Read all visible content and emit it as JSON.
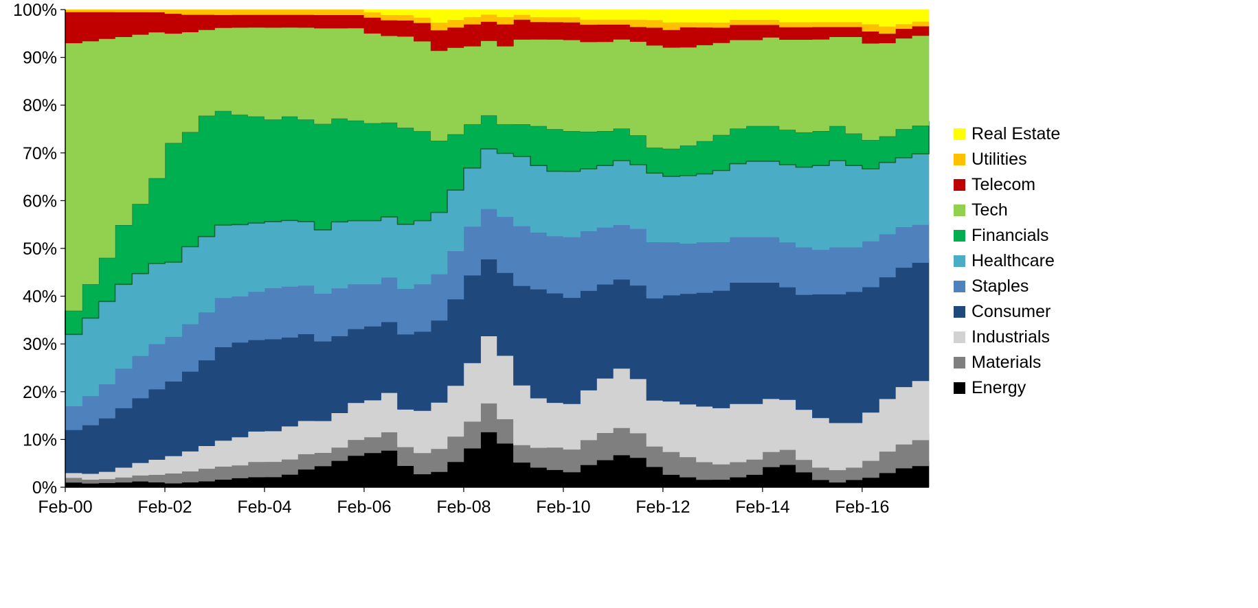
{
  "chart_data": {
    "type": "area",
    "stacking": "percent_100",
    "title": "",
    "xlabel": "",
    "ylabel": "",
    "ylim": [
      0,
      100
    ],
    "grid": false,
    "legend_position": "right",
    "y_tick_labels": [
      "0%",
      "10%",
      "20%",
      "30%",
      "40%",
      "50%",
      "60%",
      "70%",
      "80%",
      "90%",
      "100%"
    ],
    "y_tick_values": [
      0,
      10,
      20,
      30,
      40,
      50,
      60,
      70,
      80,
      90,
      100
    ],
    "x_tick_labels": [
      "Feb-00",
      "Feb-02",
      "Feb-04",
      "Feb-06",
      "Feb-08",
      "Feb-10",
      "Feb-12",
      "Feb-14",
      "Feb-16"
    ],
    "x_tick_years": [
      2000.08,
      2002.08,
      2004.08,
      2006.08,
      2008.08,
      2010.08,
      2012.08,
      2014.08,
      2016.08
    ],
    "x_years": [
      2000.08,
      2000.42,
      2000.75,
      2001.08,
      2001.42,
      2001.75,
      2002.08,
      2002.42,
      2002.75,
      2003.08,
      2003.42,
      2003.75,
      2004.08,
      2004.42,
      2004.75,
      2005.08,
      2005.42,
      2005.75,
      2006.08,
      2006.42,
      2006.75,
      2007.08,
      2007.42,
      2007.75,
      2008.08,
      2008.42,
      2008.75,
      2009.08,
      2009.42,
      2009.75,
      2010.08,
      2010.42,
      2010.75,
      2011.08,
      2011.42,
      2011.75,
      2012.08,
      2012.42,
      2012.75,
      2013.08,
      2013.42,
      2013.75,
      2014.08,
      2014.42,
      2014.75,
      2015.08,
      2015.42,
      2015.75,
      2016.08,
      2016.42,
      2016.75,
      2017.08,
      2017.42
    ],
    "series_bottom_to_top": [
      {
        "name": "Energy",
        "color": "#000000",
        "values": [
          1.0,
          0.8,
          0.9,
          1.0,
          1.2,
          1.0,
          0.8,
          1.0,
          1.2,
          1.5,
          1.8,
          2.0,
          2.0,
          2.5,
          3.5,
          4.0,
          5.0,
          6.0,
          6.5,
          7.0,
          4.0,
          2.5,
          3.0,
          5.0,
          8.0,
          11.5,
          9.0,
          5.0,
          4.0,
          3.5,
          3.0,
          4.5,
          5.5,
          6.5,
          6.0,
          4.0,
          2.5,
          2.0,
          1.5,
          1.5,
          2.0,
          2.5,
          4.0,
          4.5,
          3.0,
          1.5,
          1.0,
          1.5,
          2.0,
          3.0,
          4.0,
          4.5,
          5.5
        ]
      },
      {
        "name": "Materials",
        "color": "#7F7F7F",
        "values": [
          1.0,
          0.8,
          0.8,
          1.0,
          1.2,
          1.5,
          2.0,
          2.2,
          2.5,
          2.5,
          2.5,
          3.0,
          3.0,
          3.0,
          3.0,
          2.5,
          2.5,
          3.0,
          3.0,
          3.5,
          3.5,
          4.0,
          4.5,
          5.0,
          5.5,
          6.0,
          5.0,
          3.5,
          4.0,
          4.5,
          4.5,
          5.0,
          5.5,
          5.5,
          5.0,
          4.0,
          4.5,
          4.0,
          3.5,
          3.0,
          3.0,
          3.0,
          3.0,
          3.0,
          2.5,
          2.5,
          2.5,
          2.5,
          3.5,
          4.5,
          5.0,
          5.5,
          6.0
        ]
      },
      {
        "name": "Industrials",
        "color": "#D2D2D2",
        "values": [
          1.0,
          1.2,
          1.5,
          2.0,
          2.5,
          3.0,
          3.5,
          4.0,
          4.5,
          5.0,
          5.5,
          6.0,
          6.0,
          6.5,
          6.5,
          6.0,
          6.5,
          7.0,
          7.0,
          7.5,
          7.0,
          8.0,
          9.0,
          10.0,
          12.0,
          14.0,
          13.0,
          12.0,
          10.0,
          9.0,
          9.0,
          10.0,
          11.0,
          12.0,
          11.0,
          9.0,
          10.0,
          10.5,
          11.0,
          11.0,
          11.5,
          11.0,
          10.5,
          10.0,
          10.0,
          10.0,
          9.5,
          9.0,
          10.0,
          11.0,
          12.0,
          12.5,
          13.0
        ]
      },
      {
        "name": "Consumer",
        "color": "#1F497D",
        "values": [
          9.0,
          10.0,
          11.0,
          12.0,
          13.0,
          14.0,
          15.0,
          16.0,
          17.0,
          18.0,
          18.5,
          18.0,
          18.0,
          17.5,
          17.0,
          15.0,
          14.5,
          14.0,
          14.0,
          13.5,
          14.0,
          15.0,
          16.0,
          17.0,
          18.0,
          16.0,
          17.0,
          20.0,
          22.0,
          22.0,
          21.0,
          20.0,
          19.0,
          18.0,
          19.0,
          20.0,
          21.0,
          22.0,
          22.5,
          23.0,
          24.0,
          24.0,
          23.0,
          22.5,
          23.0,
          25.0,
          26.0,
          26.5,
          26.0,
          25.5,
          25.0,
          25.0,
          24.5
        ]
      },
      {
        "name": "Staples",
        "color": "#4F81BD",
        "values": [
          5.0,
          6.0,
          7.0,
          8.0,
          8.5,
          9.0,
          9.0,
          9.5,
          9.5,
          9.5,
          9.0,
          9.5,
          10.0,
          10.0,
          9.5,
          9.0,
          9.0,
          8.5,
          8.0,
          8.5,
          8.5,
          9.0,
          9.0,
          9.5,
          10.0,
          10.5,
          11.5,
          12.0,
          11.5,
          11.5,
          12.0,
          12.0,
          11.5,
          11.0,
          11.5,
          11.0,
          10.5,
          10.0,
          10.0,
          9.5,
          9.0,
          9.0,
          9.0,
          9.0,
          9.5,
          9.0,
          9.5,
          9.0,
          9.5,
          9.0,
          8.5,
          8.0,
          8.0
        ]
      },
      {
        "name": "Healthcare",
        "color": "#4BACC6",
        "values": [
          15.0,
          16.0,
          17.0,
          17.0,
          16.5,
          16.0,
          15.0,
          15.5,
          15.0,
          14.0,
          14.0,
          13.5,
          13.0,
          13.0,
          12.5,
          12.0,
          12.5,
          12.0,
          12.0,
          11.5,
          12.0,
          12.0,
          12.0,
          12.0,
          12.0,
          12.5,
          13.0,
          14.0,
          13.5,
          13.0,
          13.0,
          12.5,
          12.5,
          13.0,
          13.0,
          13.5,
          13.0,
          13.5,
          13.5,
          14.0,
          14.5,
          15.0,
          15.0,
          15.5,
          16.0,
          17.0,
          17.5,
          16.5,
          15.0,
          15.0,
          14.5,
          15.0,
          15.0
        ]
      },
      {
        "name": "Financials",
        "color": "#00B050",
        "stroke": "#14652F",
        "values": [
          5.0,
          7.0,
          9.0,
          12.0,
          14.0,
          17.0,
          24.0,
          23.0,
          24.0,
          22.0,
          21.5,
          21.0,
          20.0,
          20.5,
          20.0,
          20.0,
          19.5,
          19.0,
          18.5,
          18.0,
          18.0,
          17.0,
          14.0,
          11.0,
          9.0,
          7.0,
          6.0,
          6.5,
          8.0,
          8.5,
          8.0,
          7.5,
          7.0,
          6.5,
          6.0,
          5.0,
          5.5,
          6.0,
          6.5,
          7.0,
          7.0,
          7.0,
          7.0,
          7.0,
          7.0,
          7.0,
          7.0,
          6.5,
          6.0,
          5.5,
          6.0,
          6.0,
          6.5
        ]
      },
      {
        "name": "Tech",
        "color": "#92D050",
        "values": [
          56.0,
          50.0,
          45.0,
          38.0,
          34.0,
          29.0,
          22.0,
          20.0,
          17.0,
          16.0,
          17.0,
          17.5,
          18.0,
          17.5,
          18.0,
          18.0,
          17.0,
          17.5,
          17.0,
          16.5,
          17.0,
          17.0,
          17.5,
          17.0,
          16.0,
          15.5,
          16.0,
          17.0,
          17.5,
          18.0,
          18.0,
          18.0,
          18.0,
          18.0,
          19.0,
          20.0,
          20.0,
          19.5,
          19.0,
          18.0,
          17.5,
          17.0,
          17.5,
          18.0,
          18.5,
          18.5,
          18.0,
          19.5,
          20.0,
          19.5,
          19.0,
          19.0,
          18.5
        ]
      },
      {
        "name": "Telecom",
        "color": "#C00000",
        "values": [
          6.5,
          6.0,
          5.5,
          5.0,
          4.5,
          4.0,
          4.0,
          3.5,
          3.0,
          2.5,
          2.5,
          2.5,
          2.5,
          2.5,
          2.5,
          2.5,
          2.5,
          2.5,
          3.0,
          3.0,
          3.0,
          3.5,
          4.0,
          4.0,
          4.5,
          4.0,
          4.5,
          4.0,
          3.5,
          3.5,
          3.5,
          3.5,
          3.5,
          3.0,
          3.0,
          3.5,
          3.5,
          4.0,
          3.5,
          3.0,
          3.0,
          3.0,
          2.5,
          2.5,
          2.5,
          2.5,
          2.0,
          2.0,
          2.5,
          2.0,
          2.0,
          2.0,
          2.0
        ]
      },
      {
        "name": "Utilities",
        "color": "#FFC000",
        "values": [
          0.5,
          0.5,
          0.5,
          0.5,
          0.5,
          0.5,
          0.8,
          1.0,
          1.0,
          1.0,
          1.0,
          1.0,
          1.0,
          1.0,
          1.0,
          1.0,
          1.0,
          1.0,
          1.0,
          1.0,
          1.0,
          1.0,
          1.5,
          1.5,
          1.5,
          1.5,
          1.5,
          1.0,
          1.0,
          1.0,
          1.0,
          1.0,
          1.0,
          1.0,
          1.5,
          1.5,
          1.5,
          1.0,
          1.0,
          1.0,
          1.0,
          1.0,
          1.0,
          1.0,
          1.0,
          1.0,
          1.0,
          1.0,
          1.5,
          1.5,
          1.0,
          1.0,
          1.0
        ]
      },
      {
        "name": "Real Estate",
        "color": "#FFFF00",
        "values": [
          0,
          0,
          0,
          0,
          0,
          0,
          0,
          0,
          0,
          0,
          0,
          0,
          0,
          0,
          0,
          0,
          0,
          0,
          0.5,
          1.0,
          1.0,
          1.5,
          2.5,
          2.0,
          1.5,
          1.0,
          1.5,
          1.0,
          1.5,
          1.5,
          1.5,
          2.0,
          2.0,
          2.0,
          2.0,
          2.0,
          2.5,
          2.5,
          2.5,
          2.5,
          2.0,
          2.0,
          2.0,
          2.5,
          2.5,
          2.5,
          2.5,
          2.5,
          3.0,
          3.5,
          3.0,
          2.5,
          2.5
        ]
      }
    ],
    "legend_entries_top_to_bottom": [
      "Real Estate",
      "Utilities",
      "Telecom",
      "Tech",
      "Financials",
      "Healthcare",
      "Staples",
      "Consumer",
      "Industrials",
      "Materials",
      "Energy"
    ]
  },
  "layout_colors": {
    "background": "#FFFFFF",
    "axis": "#000000",
    "plot_border": "#D9D9D9"
  }
}
